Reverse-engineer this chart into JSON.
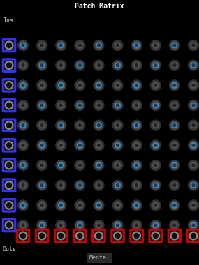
{
  "title": "Patch Matrix",
  "bg_color": "#000000",
  "title_color": "#ffffff",
  "title_fontsize": 7,
  "ins_label": "Ins",
  "outs_label": "Outs",
  "mental_label": "Mental",
  "label_color": "#cccccc",
  "label_fontsize": 6,
  "mental_fontsize": 6,
  "n_rows": 10,
  "n_cols": 10,
  "blue_border_color": "#3333ff",
  "red_border_color": "#cc0000",
  "jack_outer_color": "#888888",
  "jack_inner_color": "#111111",
  "jack_bg_color": "#1a1a1a",
  "knob_ring_dark": "#2a2a2a",
  "knob_ring_mid": "#444444",
  "knob_blue": "#4488bb",
  "knob_blue_center": "#1a3a55",
  "knob_dark_mid": "#3a3a3a",
  "knob_dark_fill": "#555555",
  "knob_dark_center": "#222222",
  "fig_width": 2.85,
  "fig_height": 3.8,
  "dpi": 100
}
